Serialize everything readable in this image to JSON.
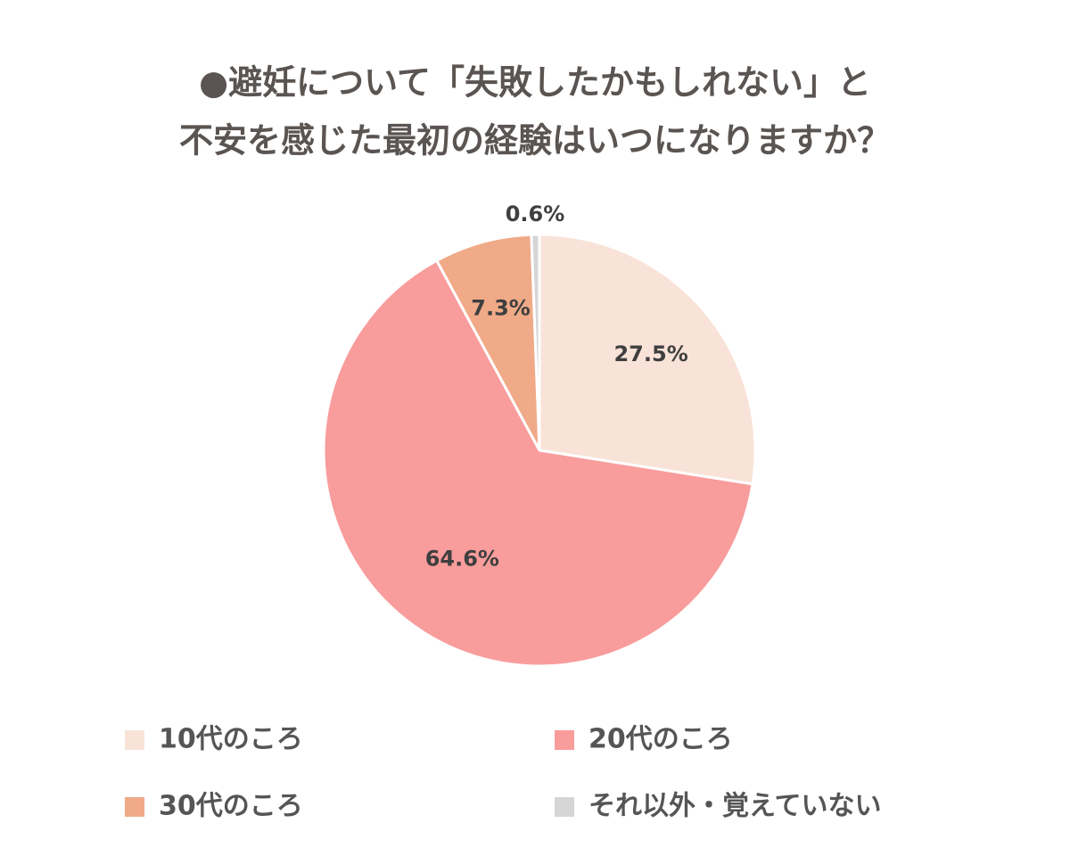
{
  "chart_data": {
    "type": "pie",
    "title": [
      "●避妊について「失敗したかもしれない」と",
      "不安を感じた最初の経験はいつになりますか？"
    ],
    "categories": [
      "10代のころ",
      "20代のころ",
      "30代のころ",
      "それ以外・覚えていない"
    ],
    "values": [
      27.5,
      64.6,
      7.3,
      0.6
    ],
    "value_labels": [
      "27.5%",
      "64.6%",
      "7.3%",
      "0.6%"
    ],
    "colors": [
      "#f9e3d8",
      "#f99c9c",
      "#f0aa88",
      "#d5d5d5"
    ]
  }
}
